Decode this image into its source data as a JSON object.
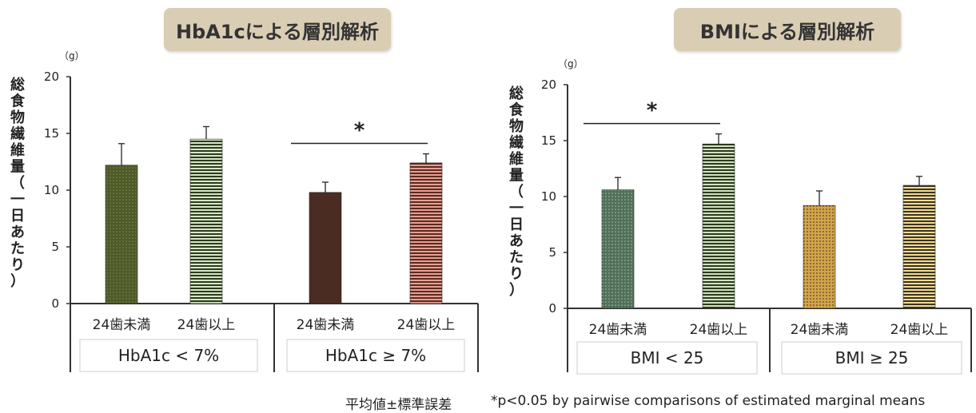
{
  "titles": {
    "left": "HbA1cによる層別解析",
    "right": "BMIによる層別解析"
  },
  "footnotes": {
    "mean": "平均値±標準誤差",
    "significance": "*p<0.05 by pairwise comparisons of estimated marginal means"
  },
  "colors": {
    "dark_olive": "#4f5a2a",
    "light_green_stripe": "#d6e6c9",
    "dark_brown": "#4a2c22",
    "salmon_stripe": "#e7a092",
    "dark_green": "#52705a",
    "light_green": "#cfe2c2",
    "gold": "#d2a44b",
    "cream": "#f3dc97",
    "stripe_dark": "#2f3a1c"
  },
  "chart_data": [
    {
      "type": "bar",
      "unit_label": "（g）",
      "ylabel": "総食物繊維量（一日あたり）",
      "ylim": [
        0,
        20
      ],
      "yticks": [
        0,
        5,
        10,
        15,
        20
      ],
      "categories": [
        "24歯未満",
        "24歯以上",
        "24歯未満",
        "24歯以上"
      ],
      "groups": [
        "HbA1c < 7%",
        "HbA1c ≥ 7%"
      ],
      "values": [
        12.2,
        14.5,
        9.8,
        12.4
      ],
      "errors": [
        1.9,
        1.1,
        0.9,
        0.8
      ],
      "significance": {
        "from": 2,
        "to": 3,
        "label": "*"
      }
    },
    {
      "type": "bar",
      "unit_label": "（g）",
      "ylabel": "総食物繊維量（一日あたり）",
      "ylim": [
        0,
        20
      ],
      "yticks": [
        0,
        5,
        10,
        15,
        20
      ],
      "categories": [
        "24歯未満",
        "24歯以上",
        "24歯未満",
        "24歯以上"
      ],
      "groups": [
        "BMI < 25",
        "BMI ≥ 25"
      ],
      "values": [
        10.6,
        14.7,
        9.2,
        11.0
      ],
      "errors": [
        1.1,
        0.9,
        1.3,
        0.8
      ],
      "significance": {
        "from": 0,
        "to": 1,
        "label": "*"
      }
    }
  ]
}
